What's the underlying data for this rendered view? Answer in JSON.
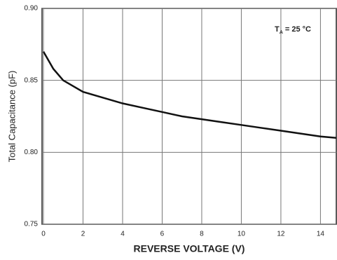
{
  "chart_data": {
    "type": "line",
    "x_label": "REVERSE VOLTAGE (V)",
    "y_label": "Total Capacitance (pF)",
    "annotation": {
      "text": "T",
      "subscript": "A",
      "rest": " = 25 °C"
    },
    "x": [
      0,
      0.5,
      1,
      2,
      3,
      4,
      5,
      6,
      7,
      8,
      9,
      10,
      11,
      12,
      13,
      14,
      14.8
    ],
    "series": [
      {
        "color": "#111111",
        "values": [
          0.87,
          0.858,
          0.85,
          0.842,
          0.838,
          0.834,
          0.831,
          0.828,
          0.825,
          0.823,
          0.821,
          0.819,
          0.817,
          0.815,
          0.813,
          0.811,
          0.81
        ]
      }
    ],
    "xlim": [
      0,
      14.8
    ],
    "ylim": [
      0.75,
      0.9
    ],
    "xticks": [
      0,
      2,
      4,
      6,
      8,
      10,
      12,
      14
    ],
    "yticks": [
      {
        "value": 0.75,
        "label": "0.75"
      },
      {
        "value": 0.8,
        "label": "0.80"
      },
      {
        "value": 0.85,
        "label": "0.85"
      },
      {
        "value": 0.9,
        "label": "0.90"
      }
    ],
    "grid": true
  }
}
